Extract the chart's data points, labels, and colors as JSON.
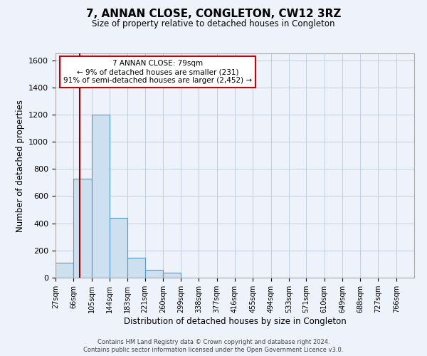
{
  "title": "7, ANNAN CLOSE, CONGLETON, CW12 3RZ",
  "subtitle": "Size of property relative to detached houses in Congleton",
  "xlabel": "Distribution of detached houses by size in Congleton",
  "ylabel": "Number of detached properties",
  "bar_edges": [
    27,
    66,
    105,
    144,
    183,
    221,
    260,
    299,
    338,
    377,
    416,
    455,
    494,
    533,
    571,
    610,
    649,
    688,
    727,
    766,
    805
  ],
  "bar_heights": [
    110,
    730,
    1200,
    440,
    145,
    60,
    35,
    0,
    0,
    0,
    0,
    0,
    0,
    0,
    0,
    0,
    0,
    0,
    0,
    0
  ],
  "bar_color": "#cce0f0",
  "bar_edge_color": "#5599cc",
  "property_size": 79,
  "vline_color": "#8b0000",
  "ylim": [
    0,
    1650
  ],
  "yticks": [
    0,
    200,
    400,
    600,
    800,
    1000,
    1200,
    1400,
    1600
  ],
  "annotation_text": "7 ANNAN CLOSE: 79sqm\n← 9% of detached houses are smaller (231)\n91% of semi-detached houses are larger (2,452) →",
  "annotation_box_color": "#ffffff",
  "annotation_box_edge_color": "#cc0000",
  "footer_line1": "Contains HM Land Registry data © Crown copyright and database right 2024.",
  "footer_line2": "Contains public sector information licensed under the Open Government Licence v3.0.",
  "bg_color": "#eef2fb",
  "plot_bg_color": "#eef2fb"
}
